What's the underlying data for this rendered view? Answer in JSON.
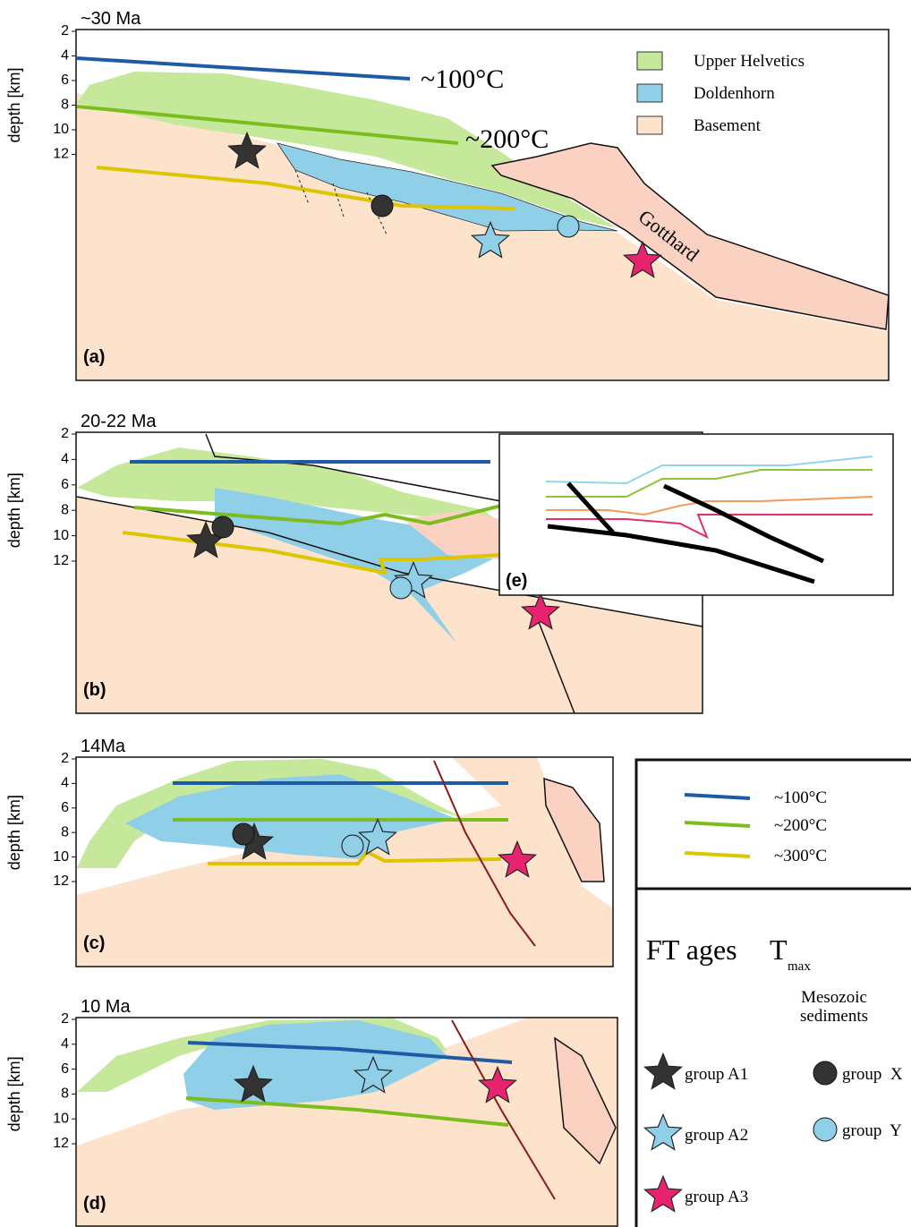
{
  "panels": [
    {
      "label": "(a)",
      "title": "~30 Ma",
      "axis_label": "depth [km]",
      "yticks": [
        2,
        4,
        6,
        8,
        10,
        12
      ]
    },
    {
      "label": "(b)",
      "title": "20-22 Ma",
      "axis_label": "depth [km]",
      "yticks": [
        2,
        4,
        6,
        8,
        10,
        12
      ]
    },
    {
      "label": "(c)",
      "title": "14Ma",
      "axis_label": "depth [km]",
      "yticks": [
        2,
        4,
        6,
        8,
        10,
        12
      ]
    },
    {
      "label": "(d)",
      "title": "10 Ma",
      "axis_label": "depth [km]",
      "yticks": [
        2,
        4,
        6,
        8,
        10,
        12
      ]
    }
  ],
  "panel_a": {
    "isotherm_100": "~100°C",
    "isotherm_200": "~200°C",
    "gotthard": "Gotthard",
    "units": [
      "Upper Helvetics",
      "Doldenhorn",
      "Basement"
    ]
  },
  "inset": {
    "label": "(e)"
  },
  "legend": {
    "isotherms": [
      "~100°C",
      "~200°C",
      "~300°C"
    ],
    "ft_title": "FT ages",
    "tmax_title": "T",
    "tmax_sub": "max",
    "sediments_title": [
      "Mesozoic",
      "sediments"
    ],
    "ft_groups": [
      "group A1",
      "group A2",
      "group A3"
    ],
    "sediment_groups": [
      "group  X",
      "group  Y"
    ]
  }
}
